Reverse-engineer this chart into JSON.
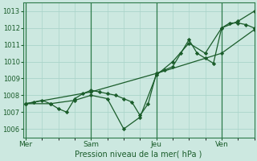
{
  "bg_color": "#cce8e0",
  "grid_color": "#aad4ca",
  "line_color": "#1a5c2a",
  "marker_color": "#1a5c2a",
  "ylabel_ticks": [
    1006,
    1007,
    1008,
    1009,
    1010,
    1011,
    1012,
    1013
  ],
  "xlabel": "Pression niveau de la mer( hPa )",
  "xtick_labels": [
    "Mer",
    "Sam",
    "Jeu",
    "Ven"
  ],
  "xtick_positions": [
    0,
    48,
    96,
    144
  ],
  "vline_positions": [
    0,
    48,
    96,
    144
  ],
  "ylim": [
    1005.5,
    1013.5
  ],
  "xlim": [
    -2,
    168
  ],
  "series1_x": [
    0,
    6,
    12,
    18,
    24,
    30,
    36,
    42,
    48,
    54,
    60,
    66,
    72,
    78,
    84,
    90,
    96,
    102,
    108,
    114,
    120,
    126,
    132,
    138,
    144,
    150,
    156,
    162,
    168
  ],
  "series1_y": [
    1007.5,
    1007.6,
    1007.7,
    1007.5,
    1007.2,
    1007.0,
    1007.8,
    1008.1,
    1008.3,
    1008.2,
    1008.1,
    1008.0,
    1007.8,
    1007.6,
    1006.8,
    1007.5,
    1009.3,
    1009.5,
    1009.7,
    1010.5,
    1011.3,
    1010.5,
    1010.2,
    1009.9,
    1012.0,
    1012.3,
    1012.3,
    1012.2,
    1012.0
  ],
  "series2_x": [
    0,
    48,
    96,
    144,
    168
  ],
  "series2_y": [
    1007.5,
    1008.2,
    1009.3,
    1010.5,
    1011.9
  ],
  "series3_x": [
    0,
    18,
    36,
    48,
    60,
    72,
    84,
    96,
    108,
    120,
    132,
    144,
    156,
    168
  ],
  "series3_y": [
    1007.5,
    1007.5,
    1007.7,
    1008.0,
    1007.8,
    1006.0,
    1006.7,
    1009.2,
    1010.0,
    1011.1,
    1010.5,
    1012.0,
    1012.4,
    1013.0
  ]
}
